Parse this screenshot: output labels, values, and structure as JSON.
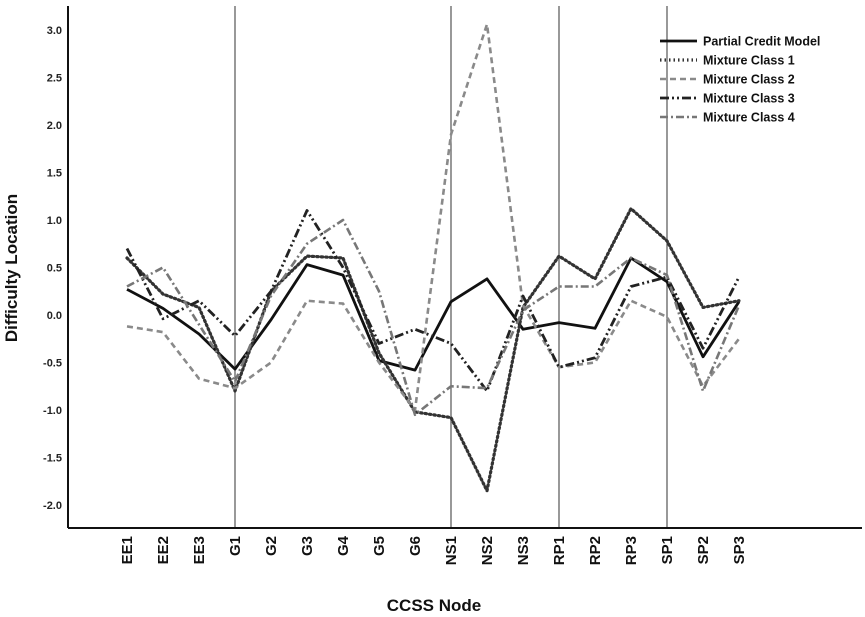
{
  "chart_data": {
    "type": "line",
    "xlabel": "CCSS Node",
    "ylabel": "Difficulty Location",
    "ylim": [
      -2.2,
      3.3
    ],
    "yticks": [
      "3.0",
      "2.5",
      "2.0",
      "1.5",
      "1.0",
      "0.5",
      "0.0",
      "-0.5",
      "-1.0",
      "-1.5",
      "-2.0"
    ],
    "ytick_values": [
      3.0,
      2.5,
      2.0,
      1.5,
      1.0,
      0.5,
      0.0,
      -0.5,
      -1.0,
      -1.5,
      -2.0
    ],
    "categories": [
      "EE1",
      "EE2",
      "EE3",
      "G1",
      "G2",
      "G3",
      "G4",
      "G5",
      "G6",
      "NS1",
      "NS2",
      "NS3",
      "RP1",
      "RP2",
      "RP3",
      "SP1",
      "SP2",
      "SP3"
    ],
    "reference_lines_after": [
      "G1",
      "NS1",
      "RP1",
      "SP1"
    ],
    "grid": false,
    "legend_position": "top-right",
    "series": [
      {
        "name": "Partial Credit Model",
        "color": "#111111",
        "dash": "solid",
        "values": [
          0.27,
          0.07,
          -0.2,
          -0.57,
          -0.05,
          0.53,
          0.42,
          -0.48,
          -0.58,
          0.14,
          0.38,
          -0.15,
          -0.08,
          -0.14,
          0.6,
          0.35,
          -0.44,
          0.14
        ]
      },
      {
        "name": "Mixture Class 1",
        "color": "#333333",
        "dash": "dotted",
        "values": [
          0.6,
          0.22,
          0.08,
          -0.8,
          0.25,
          0.62,
          0.6,
          -0.4,
          -1.02,
          -1.08,
          -1.85,
          0.08,
          0.62,
          0.38,
          1.12,
          0.78,
          0.08,
          0.15
        ]
      },
      {
        "name": "Mixture Class 2",
        "color": "#8a8a8a",
        "dash": "dashed",
        "values": [
          -0.12,
          -0.18,
          -0.67,
          -0.77,
          -0.5,
          0.15,
          0.12,
          -0.5,
          -1.0,
          1.9,
          3.06,
          0.1,
          -0.55,
          -0.5,
          0.15,
          -0.02,
          -0.75,
          -0.25
        ]
      },
      {
        "name": "Mixture Class 3",
        "color": "#222222",
        "dash": "dash-dot-dot",
        "values": [
          0.7,
          -0.04,
          0.15,
          -0.22,
          0.25,
          1.1,
          0.5,
          -0.3,
          -0.15,
          -0.3,
          -0.8,
          0.2,
          -0.55,
          -0.45,
          0.3,
          0.4,
          -0.35,
          0.4
        ]
      },
      {
        "name": "Mixture Class 4",
        "color": "#777777",
        "dash": "dash-dot",
        "values": [
          0.3,
          0.5,
          -0.1,
          -0.7,
          0.2,
          0.75,
          1.0,
          0.25,
          -1.05,
          -0.75,
          -0.77,
          0.05,
          0.3,
          0.3,
          0.6,
          0.42,
          -0.8,
          0.1
        ]
      }
    ]
  }
}
